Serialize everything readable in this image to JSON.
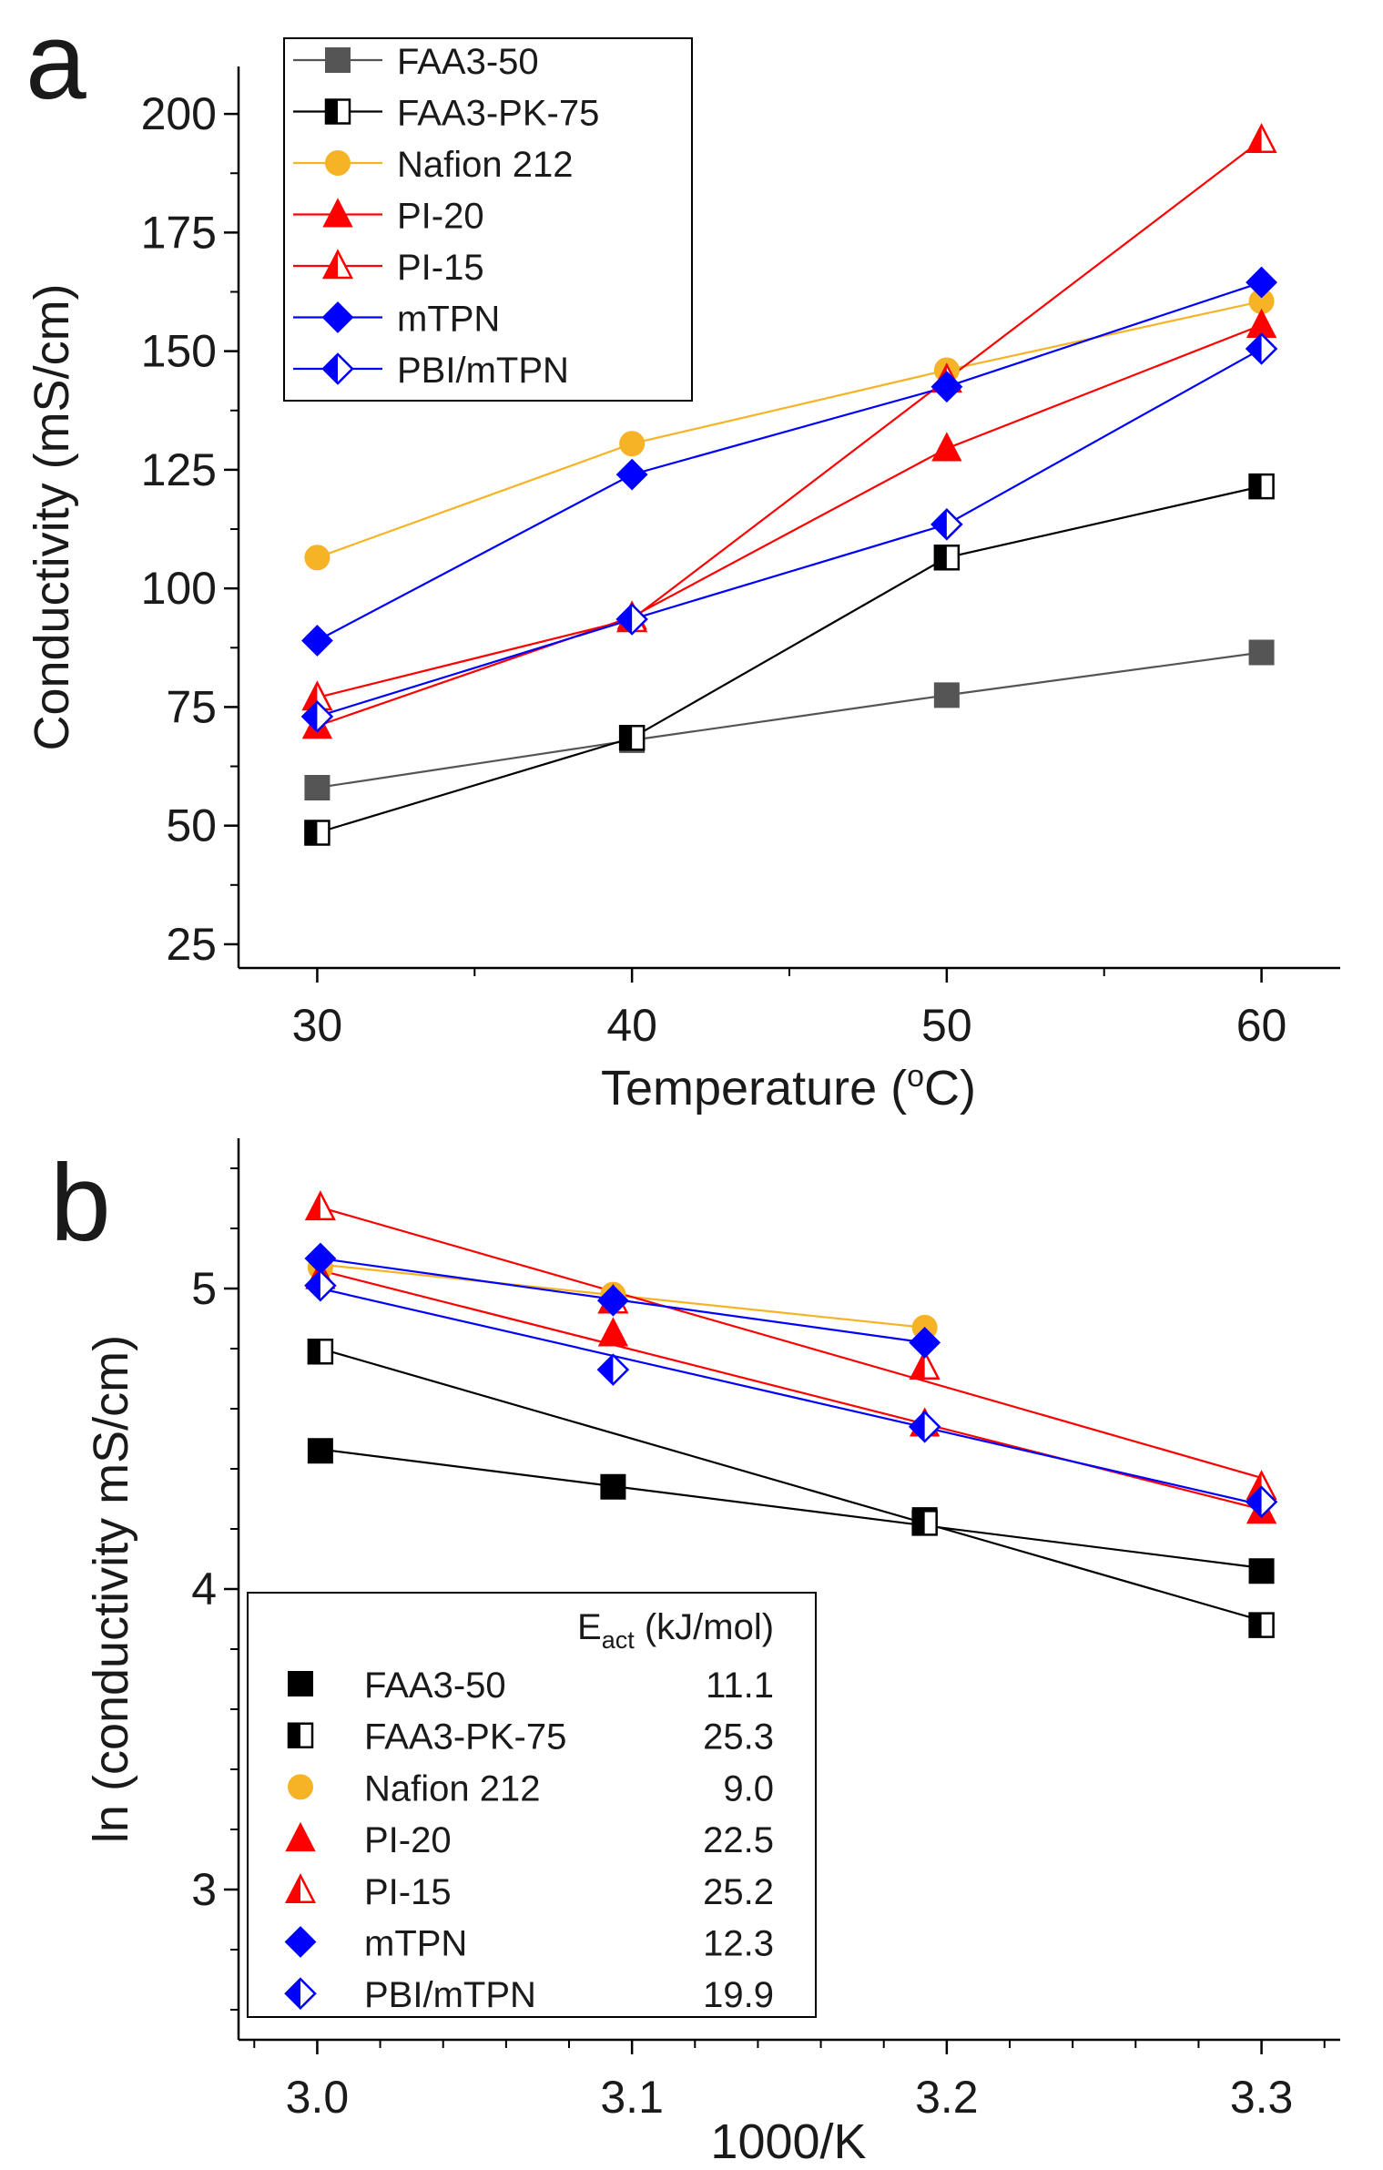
{
  "panels": [
    {
      "panel_label": "a",
      "xlabel": "Temperature (",
      "xlabel_sup": "o",
      "xlabel_end": "C)",
      "ylabel": "Conductivity (mS/cm)"
    },
    {
      "panel_label": "b",
      "xlabel": "1000/K",
      "ylabel": "ln (conductivity mS/cm)",
      "legend_header_main": "E",
      "legend_header_sub": "act",
      "legend_header_unit": " (kJ/mol)"
    }
  ],
  "chart_data": [
    {
      "type": "line",
      "title": "",
      "xlabel": "Temperature (oC)",
      "ylabel": "Conductivity (mS/cm)",
      "xlim": [
        27.5,
        62.5
      ],
      "ylim": [
        20,
        210
      ],
      "xticks": [
        30,
        40,
        50,
        60
      ],
      "yticks": [
        25,
        50,
        75,
        100,
        125,
        150,
        175,
        200
      ],
      "x": [
        30,
        40,
        50,
        60
      ],
      "legend_position": "top-left",
      "series": [
        {
          "name": "FAA3-50",
          "color": "#555555",
          "marker": "square-filled",
          "values": [
            58,
            68,
            77.5,
            86.5
          ]
        },
        {
          "name": "FAA3-PK-75",
          "color": "#000000",
          "marker": "square-half",
          "values": [
            48.5,
            68.5,
            106.5,
            121.5
          ]
        },
        {
          "name": "Nafion 212",
          "color": "#f5b325",
          "marker": "circle-filled",
          "values": [
            106.5,
            130.5,
            146,
            160.5
          ]
        },
        {
          "name": "PI-20",
          "color": "#ff0000",
          "marker": "triangle-filled",
          "values": [
            71,
            94,
            129.5,
            155.5
          ]
        },
        {
          "name": "PI-15",
          "color": "#ff0000",
          "marker": "triangle-half",
          "values": [
            77,
            93.5,
            144,
            194.5
          ]
        },
        {
          "name": "mTPN",
          "color": "#0000ff",
          "marker": "diamond-filled",
          "values": [
            89,
            124,
            142.5,
            164.5
          ]
        },
        {
          "name": "PBI/mTPN",
          "color": "#0000ff",
          "marker": "diamond-half",
          "values": [
            73,
            93.5,
            113.5,
            150.5
          ]
        }
      ]
    },
    {
      "type": "scatter",
      "title": "",
      "xlabel": "1000/K",
      "ylabel": "ln (conductivity mS/cm)",
      "xlim": [
        2.975,
        3.325
      ],
      "ylim": [
        2.5,
        5.5
      ],
      "xticks": [
        "3.0",
        "3.1",
        "3.2",
        "3.3"
      ],
      "yticks": [
        "3",
        "4",
        "5"
      ],
      "legend_position": "bottom-left",
      "legend_value_header": "Eact (kJ/mol)",
      "series": [
        {
          "name": "FAA3-50",
          "e_act": "11.1",
          "color": "#000000",
          "marker": "square-filled",
          "x": [
            3.001,
            3.094,
            3.193,
            3.3
          ],
          "y": [
            4.46,
            4.34,
            4.23,
            4.06
          ],
          "fit": [
            [
              3.001,
              4.465
            ],
            [
              3.3,
              4.07
            ]
          ]
        },
        {
          "name": "FAA3-PK-75",
          "e_act": "25.3",
          "color": "#000000",
          "marker": "square-half",
          "x": [
            3.001,
            3.193,
            3.3
          ],
          "y": [
            4.79,
            4.22,
            3.88
          ],
          "fit": [
            [
              3.001,
              4.8
            ],
            [
              3.3,
              3.895
            ]
          ]
        },
        {
          "name": "Nafion 212",
          "e_act": "9.0",
          "color": "#f5b325",
          "marker": "circle-filled",
          "x": [
            3.001,
            3.094,
            3.193
          ],
          "y": [
            5.07,
            4.98,
            4.87
          ],
          "fit": [
            [
              3.001,
              5.08
            ],
            [
              3.193,
              4.87
            ]
          ]
        },
        {
          "name": "PI-20",
          "e_act": "22.5",
          "color": "#ff0000",
          "marker": "triangle-filled",
          "x": [
            3.001,
            3.094,
            3.193,
            3.3
          ],
          "y": [
            5.04,
            4.85,
            4.55,
            4.26
          ],
          "fit": [
            [
              3.001,
              5.06
            ],
            [
              3.3,
              4.265
            ]
          ]
        },
        {
          "name": "PI-15",
          "e_act": "25.2",
          "color": "#ff0000",
          "marker": "triangle-half",
          "x": [
            3.001,
            3.094,
            3.193,
            3.3
          ],
          "y": [
            5.27,
            4.96,
            4.74,
            4.34
          ],
          "fit": [
            [
              3.001,
              5.27
            ],
            [
              3.3,
              4.37
            ]
          ]
        },
        {
          "name": "mTPN",
          "e_act": "12.3",
          "color": "#0000ff",
          "marker": "diamond-filled",
          "x": [
            3.001,
            3.094,
            3.193
          ],
          "y": [
            5.1,
            4.96,
            4.82
          ],
          "fit": [
            [
              3.001,
              5.1
            ],
            [
              3.193,
              4.82
            ]
          ]
        },
        {
          "name": "PBI/mTPN",
          "e_act": "19.9",
          "color": "#0000ff",
          "marker": "diamond-half",
          "x": [
            3.001,
            3.094,
            3.193,
            3.3
          ],
          "y": [
            5.01,
            4.73,
            4.54,
            4.29
          ],
          "fit": [
            [
              3.001,
              5.0
            ],
            [
              3.3,
              4.28
            ]
          ]
        }
      ]
    }
  ]
}
